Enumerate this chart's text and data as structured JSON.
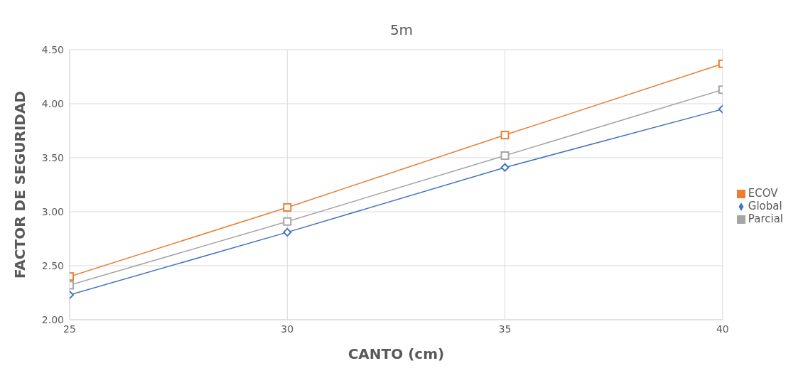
{
  "chart_data": {
    "type": "line",
    "title": "5m",
    "xlabel": "CANTO (cm)",
    "ylabel": "FACTOR DE SEGURIDAD",
    "x": [
      25,
      30,
      35,
      40
    ],
    "series": [
      {
        "name": "Global",
        "color": "#4472c4",
        "marker": "diamond",
        "values": [
          2.23,
          2.81,
          3.41,
          3.95
        ]
      },
      {
        "name": "ECOV",
        "color": "#ed7d31",
        "marker": "square",
        "values": [
          2.4,
          3.04,
          3.71,
          4.37
        ]
      },
      {
        "name": "Parcial",
        "color": "#a5a5a5",
        "marker": "square",
        "values": [
          2.32,
          2.91,
          3.52,
          4.13
        ]
      }
    ],
    "xlim": [
      25,
      40
    ],
    "xticks": [
      25,
      30,
      35,
      40
    ],
    "ylim": [
      2,
      4.5
    ],
    "yticks": [
      {
        "value": 2,
        "label": "2.00"
      },
      {
        "value": 2.5,
        "label": "2.50"
      },
      {
        "value": 3,
        "label": "3.00"
      },
      {
        "value": 3.5,
        "label": "3.50"
      },
      {
        "value": 4,
        "label": "4.00"
      },
      {
        "value": 4.5,
        "label": "4.50"
      }
    ],
    "grid": true,
    "legend": "right"
  }
}
